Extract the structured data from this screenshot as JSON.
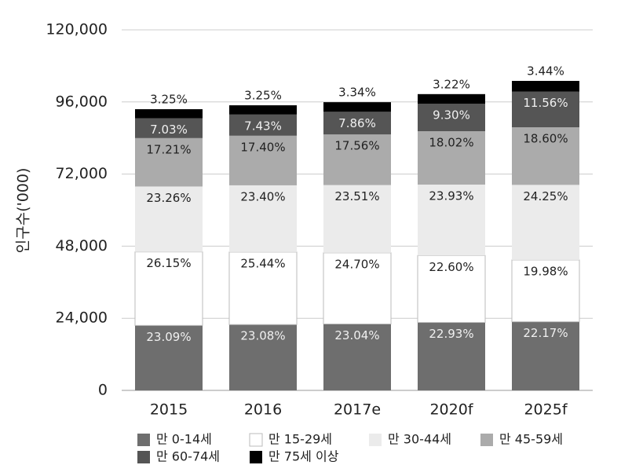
{
  "chart_data": {
    "type": "bar",
    "stacked": true,
    "y_label": "인구수('000)",
    "categories": [
      "2015",
      "2016",
      "2017e",
      "2020f",
      "2025f"
    ],
    "ylim": [
      0,
      120000
    ],
    "yticks": [
      0,
      {
        "value": 24000,
        "label": "24,000"
      },
      {
        "value": 48000,
        "label": "48,000"
      },
      {
        "value": 72000,
        "label": "72,000"
      },
      {
        "value": 96000,
        "label": "96,000"
      },
      {
        "value": 120000,
        "label": "120,000"
      }
    ],
    "grid": true,
    "legend": "bottom",
    "series": [
      {
        "name": "만 0-14세",
        "color": "#6e6e6e",
        "values": [
          21610,
          21900,
          22100,
          22610,
          22840
        ],
        "value_labels": [
          "23.09%",
          "23.08%",
          "23.04%",
          "22.93%",
          "22.17%"
        ]
      },
      {
        "name": "만 15-29세",
        "color": "#ffffff",
        "values": [
          24480,
          24140,
          23690,
          22280,
          20580
        ],
        "value_labels": [
          "26.15%",
          "25.44%",
          "24.70%",
          "22.60%",
          "19.98%"
        ]
      },
      {
        "name": "만 30-44세",
        "color": "#ebebeb",
        "values": [
          21770,
          22210,
          22550,
          23600,
          24980
        ],
        "value_labels": [
          "23.26%",
          "23.40%",
          "23.51%",
          "23.93%",
          "24.25%"
        ]
      },
      {
        "name": "만 45-59세",
        "color": "#ababab",
        "values": [
          16110,
          16510,
          16840,
          17770,
          19160
        ],
        "value_labels": [
          "17.21%",
          "17.40%",
          "17.56%",
          "18.02%",
          "18.60%"
        ]
      },
      {
        "name": "만 60-74세",
        "color": "#555555",
        "values": [
          6580,
          7050,
          7540,
          9170,
          11910
        ],
        "value_labels": [
          "7.03%",
          "7.43%",
          "7.86%",
          "9.30%",
          "11.56%"
        ]
      },
      {
        "name": "만 75세 이상",
        "color": "#000000",
        "values": [
          3040,
          3080,
          3200,
          3180,
          3540
        ],
        "value_labels": [
          "3.25%",
          "3.25%",
          "3.34%",
          "3.22%",
          "3.44%"
        ]
      }
    ]
  }
}
